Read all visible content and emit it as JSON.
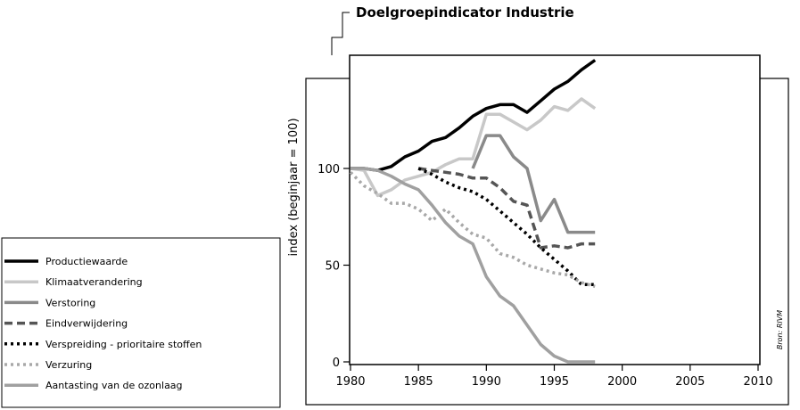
{
  "chart_data": {
    "type": "line",
    "title": "Doelgroepindicator Industrie",
    "xlabel": "",
    "ylabel": "index (beginjaar = 100)",
    "source": "Bron: RIVM",
    "xlim": [
      1980,
      2010
    ],
    "ylim": [
      0,
      155
    ],
    "x_ticks": [
      1980,
      1985,
      1990,
      1995,
      2000,
      2005,
      2010
    ],
    "y_ticks": [
      0,
      50,
      100
    ],
    "grid": false,
    "legend_position": "left",
    "series": [
      {
        "name": "Productiewaarde",
        "color": "#000000",
        "dash": "solid",
        "x": [
          1980,
          1981,
          1982,
          1983,
          1984,
          1985,
          1986,
          1987,
          1988,
          1989,
          1990,
          1991,
          1992,
          1993,
          1994,
          1995,
          1996,
          1997,
          1998
        ],
        "y": [
          100,
          100,
          99,
          101,
          106,
          109,
          114,
          116,
          121,
          127,
          131,
          133,
          133,
          129,
          135,
          141,
          145,
          151,
          156
        ]
      },
      {
        "name": "Klimaatverandering",
        "color": "#c8c8c8",
        "dash": "solid",
        "x": [
          1980,
          1981,
          1982,
          1983,
          1984,
          1985,
          1986,
          1987,
          1988,
          1989,
          1990,
          1991,
          1992,
          1993,
          1994,
          1995,
          1996,
          1997,
          1998
        ],
        "y": [
          100,
          99,
          86,
          89,
          94,
          96,
          98,
          102,
          105,
          105,
          128,
          128,
          124,
          120,
          125,
          132,
          130,
          136,
          131
        ]
      },
      {
        "name": "Verstoring",
        "color": "#8a8a8a",
        "dash": "solid",
        "x": [
          1989,
          1990,
          1991,
          1992,
          1993,
          1994,
          1995,
          1996,
          1997,
          1998
        ],
        "y": [
          100,
          117,
          117,
          106,
          100,
          73,
          84,
          67,
          67,
          67
        ]
      },
      {
        "name": "Eindverwijdering",
        "color": "#555555",
        "dash": "dash",
        "x": [
          1985,
          1986,
          1987,
          1988,
          1989,
          1990,
          1991,
          1992,
          1993,
          1994,
          1995,
          1996,
          1997,
          1998
        ],
        "y": [
          100,
          99,
          98,
          97,
          95,
          95,
          90,
          83,
          81,
          59,
          60,
          59,
          61,
          61
        ]
      },
      {
        "name": "Verspreiding - prioritaire stoffen",
        "color": "#000000",
        "dash": "dot",
        "x": [
          1985,
          1986,
          1987,
          1988,
          1989,
          1990,
          1991,
          1992,
          1993,
          1994,
          1995,
          1996,
          1997,
          1998
        ],
        "y": [
          100,
          97,
          93,
          90,
          88,
          84,
          78,
          72,
          66,
          59,
          53,
          47,
          40,
          40
        ]
      },
      {
        "name": "Verzuring",
        "color": "#a8a8a8",
        "dash": "dot",
        "x": [
          1980,
          1981,
          1982,
          1983,
          1984,
          1985,
          1986,
          1987,
          1988,
          1989,
          1990,
          1991,
          1992,
          1993,
          1994,
          1995,
          1996,
          1997,
          1998
        ],
        "y": [
          98,
          91,
          87,
          82,
          82,
          79,
          73,
          79,
          72,
          66,
          64,
          56,
          54,
          50,
          48,
          46,
          45,
          41,
          39
        ]
      },
      {
        "name": "Aantasting van de ozonlaag",
        "color": "#a0a0a0",
        "dash": "solid",
        "x": [
          1980,
          1981,
          1982,
          1983,
          1984,
          1985,
          1986,
          1987,
          1988,
          1989,
          1990,
          1991,
          1992,
          1993,
          1994,
          1995,
          1996,
          1997,
          1998
        ],
        "y": [
          100,
          100,
          99,
          96,
          92,
          89,
          81,
          72,
          65,
          61,
          44,
          34,
          29,
          19,
          9,
          3,
          0,
          0,
          0
        ]
      }
    ]
  }
}
